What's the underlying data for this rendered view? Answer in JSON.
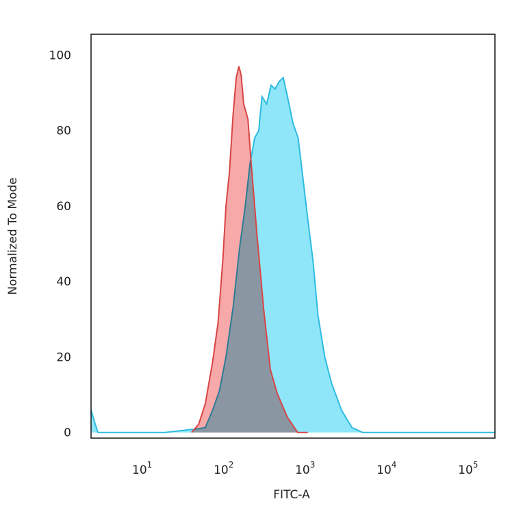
{
  "chart_data": {
    "type": "histogram-overlay",
    "x_label": "FITC-A",
    "y_label": "Normalized To Mode",
    "xscale": "log",
    "xlim": [
      2.1,
      190000
    ],
    "ylim": [
      -1.5,
      105.5
    ],
    "xticks": [
      {
        "value": 10,
        "label": "10",
        "exponent": "1"
      },
      {
        "value": 100,
        "label": "10",
        "exponent": "2"
      },
      {
        "value": 1000,
        "label": "10",
        "exponent": "3"
      },
      {
        "value": 10000,
        "label": "10",
        "exponent": "4"
      },
      {
        "value": 100000,
        "label": "10",
        "exponent": "5"
      }
    ],
    "yticks": [
      0,
      20,
      40,
      60,
      80,
      100
    ],
    "series": [
      {
        "color": "#2ebbe0",
        "fill": "#8fe6f8",
        "x": [
          2.1,
          2.3,
          2.55,
          17,
          27,
          44,
          53,
          65,
          79,
          95,
          116,
          140,
          164,
          187,
          214,
          240,
          263,
          300,
          340,
          380,
          430,
          480,
          540,
          630,
          730,
          820,
          960,
          1110,
          1280,
          1550,
          1880,
          2500,
          3350,
          4500,
          6000,
          190000
        ],
        "values": [
          6,
          3,
          0,
          0,
          0.5,
          1,
          1.3,
          5.8,
          11,
          20,
          33,
          49,
          60,
          71,
          78,
          80,
          89,
          87,
          92,
          91,
          93,
          94,
          89,
          82,
          78,
          69,
          56.5,
          45.7,
          31,
          20,
          13,
          5.8,
          1.3,
          0,
          0,
          0
        ]
      },
      {
        "color": "#d84545",
        "fill": "#f7a8a8",
        "x": [
          36,
          44,
          53,
          65,
          76,
          87,
          95,
          105,
          116,
          127,
          137,
          146,
          157,
          177,
          191,
          214,
          227,
          275,
          333,
          405,
          540,
          721,
          962
        ],
        "values": [
          0,
          2.2,
          7.6,
          18.5,
          29,
          45.7,
          60,
          69,
          84,
          94,
          97,
          94.6,
          87,
          83,
          73,
          60,
          53,
          33,
          16.7,
          10.3,
          4,
          0,
          0
        ]
      }
    ]
  }
}
